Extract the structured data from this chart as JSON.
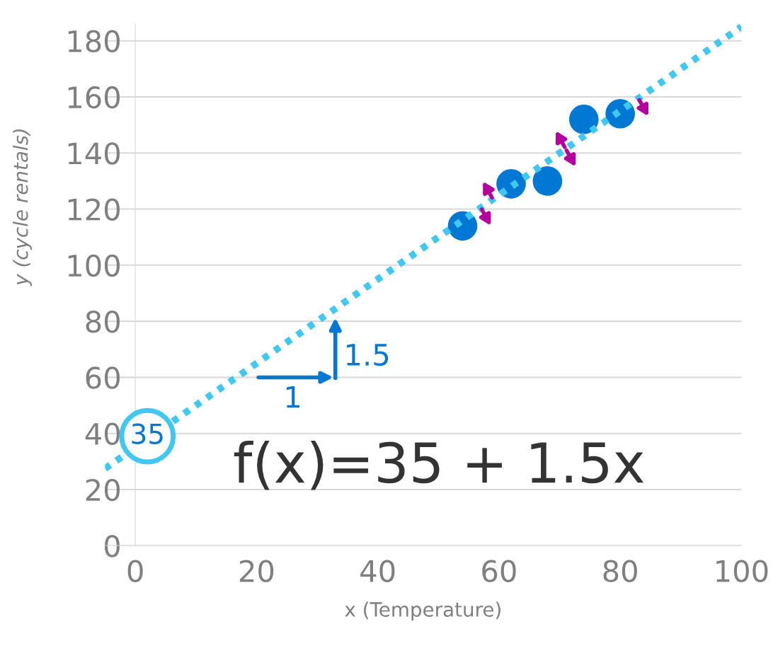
{
  "chart_data": {
    "type": "scatter",
    "xlabel": "x (Temperature)",
    "ylabel": "y (cycle rentals)",
    "xlim": [
      -5,
      100
    ],
    "ylim": [
      0,
      186
    ],
    "xticks": [
      0,
      20,
      40,
      60,
      80,
      100
    ],
    "yticks": [
      0,
      20,
      40,
      60,
      80,
      100,
      120,
      140,
      160,
      180
    ],
    "grid": "y",
    "marker": "circle",
    "series": [
      {
        "color": "#0078d4",
        "x": [
          54,
          62,
          68,
          74,
          80
        ],
        "values": [
          114,
          129,
          130,
          152,
          154
        ]
      },
      {
        "type": "line",
        "color": "#41c8f2",
        "line_style": "dotted",
        "marker": "none",
        "x": [
          -5,
          100
        ],
        "values": [
          27.5,
          185
        ]
      }
    ],
    "annotations": [
      {
        "text": "35",
        "x": 2,
        "y": 39
      },
      "1",
      "1.5",
      "f(x)=35 + 1.5x"
    ]
  }
}
